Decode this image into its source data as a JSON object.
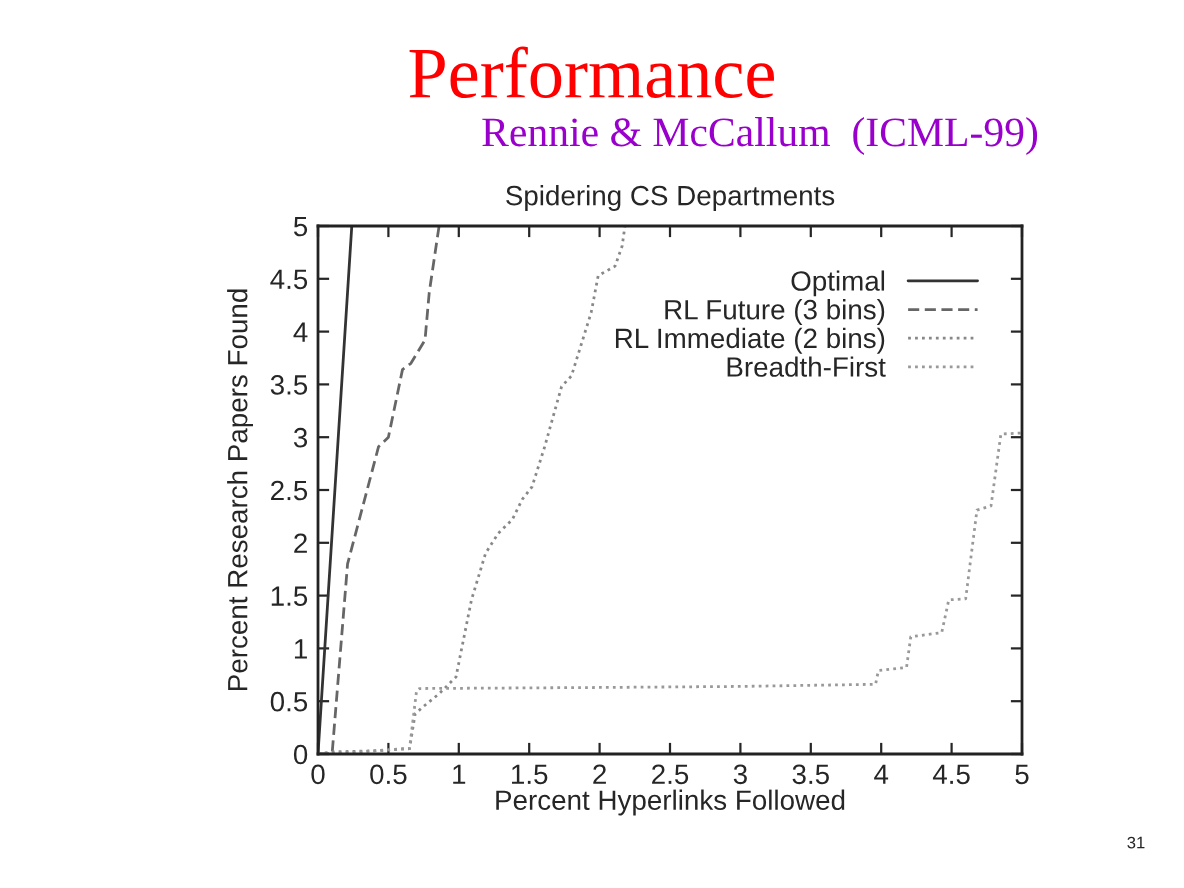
{
  "chart_data": {
    "type": "line",
    "title": "Performance",
    "subtitle": "Rennie & McCallum  (ICML-99)",
    "xlabel": "Percent Hyperlinks Followed",
    "ylabel": "Percent Research Papers Found",
    "annotations": [
      "Spidering CS Departments",
      "31"
    ],
    "xlim": [
      0,
      5
    ],
    "ylim": [
      0,
      5
    ],
    "xticks": [
      0,
      0.5,
      1,
      1.5,
      2,
      2.5,
      3,
      3.5,
      4,
      4.5,
      5
    ],
    "yticks": [
      0,
      0.5,
      1,
      1.5,
      2,
      2.5,
      3,
      3.5,
      4,
      4.5,
      5
    ],
    "grid": false,
    "legend": "top right",
    "marker": "none",
    "series": [
      {
        "name": "Optimal",
        "color": "#333333",
        "line_style": "solid",
        "x": [
          0,
          0.24
        ],
        "values": [
          0,
          5
        ]
      },
      {
        "name": "RL Future (3 bins)",
        "color": "#666666",
        "line_style": "dashed",
        "x": [
          0,
          0.1,
          0.21,
          0.43,
          0.5,
          0.6,
          0.66,
          0.76,
          0.79,
          0.86
        ],
        "values": [
          0,
          0,
          1.8,
          2.91,
          3.0,
          3.64,
          3.7,
          3.92,
          4.37,
          5
        ]
      },
      {
        "name": "RL Immediate (2 bins)",
        "color": "#888888",
        "line_style": "dotted",
        "x": [
          0,
          0.1,
          0.4,
          0.65,
          0.69,
          0.74,
          0.86,
          0.98,
          1.09,
          1.19,
          1.28,
          1.38,
          1.45,
          1.52,
          1.61,
          1.73,
          1.8,
          1.94,
          1.99,
          2.11,
          2.16,
          2.18
        ],
        "values": [
          0,
          0.02,
          0.03,
          0.05,
          0.38,
          0.44,
          0.57,
          0.73,
          1.46,
          1.9,
          2.09,
          2.22,
          2.41,
          2.53,
          2.91,
          3.48,
          3.58,
          4.18,
          4.53,
          4.62,
          4.81,
          5
        ]
      },
      {
        "name": "Breadth-First",
        "color": "#999999",
        "line_style": "dotted",
        "x": [
          0,
          0.3,
          0.6,
          0.65,
          0.7,
          0.72,
          2,
          3,
          3.96,
          3.98,
          4.18,
          4.21,
          4.43,
          4.48,
          4.6,
          4.68,
          4.78,
          4.85,
          5
        ],
        "values": [
          0,
          0.02,
          0.05,
          0.05,
          0.6,
          0.62,
          0.63,
          0.64,
          0.66,
          0.79,
          0.82,
          1.11,
          1.15,
          1.46,
          1.47,
          2.31,
          2.35,
          3.03,
          3.04
        ]
      }
    ]
  }
}
